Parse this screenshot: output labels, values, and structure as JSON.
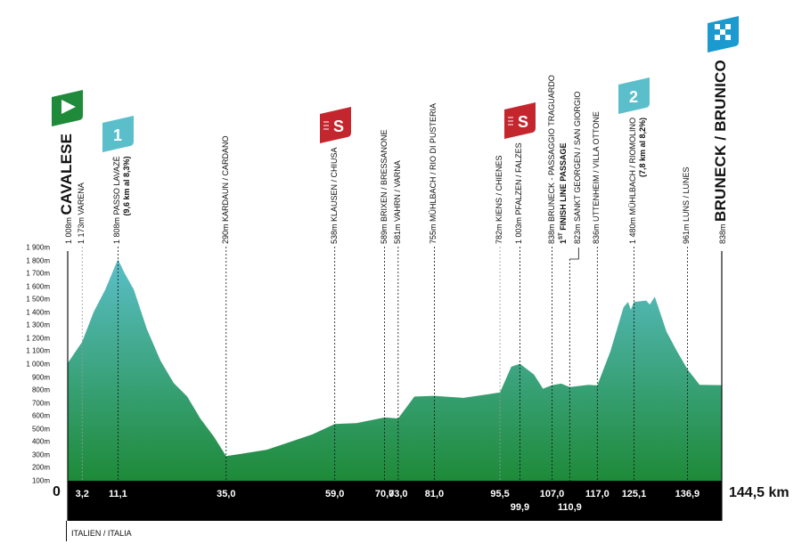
{
  "colors": {
    "fill_top": "#5bbfc9",
    "fill_bottom": "#1e8a38",
    "bar": "#000000",
    "start_flag": "#1f8a3a",
    "climb_flag": "#5bbfcb",
    "sprint_flag": "#c4262e",
    "finish_flag": "#1b9ad0"
  },
  "chart_data": {
    "type": "area",
    "xlabel": "km",
    "ylabel": "",
    "xlim": [
      0,
      144.5
    ],
    "ylim": [
      100,
      1900
    ],
    "y_ticks": [
      "100m",
      "200m",
      "300m",
      "400m",
      "500m",
      "600m",
      "700m",
      "800m",
      "900m",
      "1 000m",
      "1 100m",
      "1 200m",
      "1 300m",
      "1 400m",
      "1 500m",
      "1 600m",
      "1 700m",
      "1 800m",
      "1 900m"
    ],
    "y_tick_values": [
      100,
      200,
      300,
      400,
      500,
      600,
      700,
      800,
      900,
      1000,
      1100,
      1200,
      1300,
      1400,
      1500,
      1600,
      1700,
      1800,
      1900
    ],
    "profile": [
      [
        0,
        1008
      ],
      [
        3.2,
        1173
      ],
      [
        5.7,
        1400
      ],
      [
        8.3,
        1575
      ],
      [
        10.5,
        1760
      ],
      [
        11.1,
        1808
      ],
      [
        12.6,
        1700
      ],
      [
        14.6,
        1575
      ],
      [
        17.5,
        1270
      ],
      [
        20.5,
        1027
      ],
      [
        23.4,
        855
      ],
      [
        26.4,
        750
      ],
      [
        29.3,
        580
      ],
      [
        32.3,
        440
      ],
      [
        35.0,
        290
      ],
      [
        38,
        306
      ],
      [
        44,
        340
      ],
      [
        50,
        410
      ],
      [
        54,
        457
      ],
      [
        59,
        538
      ],
      [
        63.8,
        545
      ],
      [
        70,
        589
      ],
      [
        73,
        581
      ],
      [
        76.6,
        750
      ],
      [
        81,
        755
      ],
      [
        87.4,
        740
      ],
      [
        93.3,
        770
      ],
      [
        95.5,
        782
      ],
      [
        98,
        980
      ],
      [
        99.9,
        1003
      ],
      [
        103,
        920
      ],
      [
        105,
        810
      ],
      [
        107,
        838
      ],
      [
        109,
        850
      ],
      [
        110.9,
        823
      ],
      [
        115,
        840
      ],
      [
        117,
        836
      ],
      [
        119.9,
        1100
      ],
      [
        122.8,
        1440
      ],
      [
        123.8,
        1480
      ],
      [
        124.4,
        1420
      ],
      [
        125.1,
        1480
      ],
      [
        127.8,
        1490
      ],
      [
        128.6,
        1460
      ],
      [
        129.7,
        1520
      ],
      [
        132.3,
        1250
      ],
      [
        134.6,
        1100
      ],
      [
        136.9,
        961
      ],
      [
        139.6,
        840
      ],
      [
        144.5,
        838
      ]
    ],
    "start_label": "0",
    "total_label": "144,5 km",
    "checkpoints": [
      {
        "km": 0,
        "km_label": "",
        "elev": "1 008m",
        "name": "CAVALESE",
        "big": true,
        "icon": "start-flag"
      },
      {
        "km": 3.2,
        "km_label": "3,2",
        "elev": "1 173m",
        "name": "VARENA",
        "row": 0,
        "light": true
      },
      {
        "km": 11.1,
        "km_label": "11,1",
        "elev": "1 808m",
        "name": "PASSO LAVAZÈ",
        "sub": "(9,6 km al 8,3%)",
        "icon": "climb",
        "icon_text": "1",
        "row": 0
      },
      {
        "km": 35.0,
        "km_label": "35,0",
        "elev": "290m",
        "name": "KARDAUN / CARDANO",
        "row": 0
      },
      {
        "km": 59.0,
        "km_label": "59,0",
        "elev": "538m",
        "name": "KLAUSEN / CHIUSA",
        "icon": "sprint",
        "icon_text": "S",
        "row": 0
      },
      {
        "km": 70.0,
        "km_label": "70,0",
        "elev": "589m",
        "name": "BRIXEN / BRESSANONE",
        "row": 0
      },
      {
        "km": 73.0,
        "km_label": "73,0",
        "elev": "581m",
        "name": "VAHRN / VARNA",
        "row": 0
      },
      {
        "km": 81.0,
        "km_label": "81,0",
        "elev": "755m",
        "name": "MÜHLBACH / RIO DI PUSTERIA",
        "row": 0
      },
      {
        "km": 95.5,
        "km_label": "95,5",
        "elev": "782m",
        "name": "KIENS / CHIENES",
        "row": 0,
        "light": true
      },
      {
        "km": 99.9,
        "km_label": "99,9",
        "elev": "1 003m",
        "name": "PFALZEN / FALZES",
        "icon": "sprint",
        "icon_text": "S",
        "row": 1
      },
      {
        "km": 107.0,
        "km_label": "107,0",
        "elev": "838m",
        "name": "BRUNECK - PASSAGGIO TRAGUARDO",
        "sub_pre": "1",
        "sub_sup": "ST",
        "sub_rest": " FINISH LINE PASSAGE",
        "row": 0
      },
      {
        "km": 110.9,
        "km_label": "110,9",
        "elev": "823m",
        "name": "SANKT GEORGEN / SAN GIORGIO",
        "row": 1,
        "bracket": true
      },
      {
        "km": 117.0,
        "km_label": "117,0",
        "elev": "836m",
        "name": "UTTENHEIM / VILLA OTTONE",
        "row": 0
      },
      {
        "km": 125.1,
        "km_label": "125,1",
        "elev": "1 480m",
        "name": "MÜHLBACH / RIOMOLINO",
        "sub": "(7,8 km al 8,2%)",
        "icon": "climb",
        "icon_text": "2",
        "row": 0
      },
      {
        "km": 136.9,
        "km_label": "136,9",
        "elev": "961m",
        "name": "LUNS / LUNES",
        "row": 0
      },
      {
        "km": 144.5,
        "km_label": "",
        "elev": "838m",
        "name": "BRUNECK / BRUNICO",
        "big": true,
        "icon": "finish-flag"
      }
    ],
    "country": "ITALIEN / ITALIA"
  }
}
